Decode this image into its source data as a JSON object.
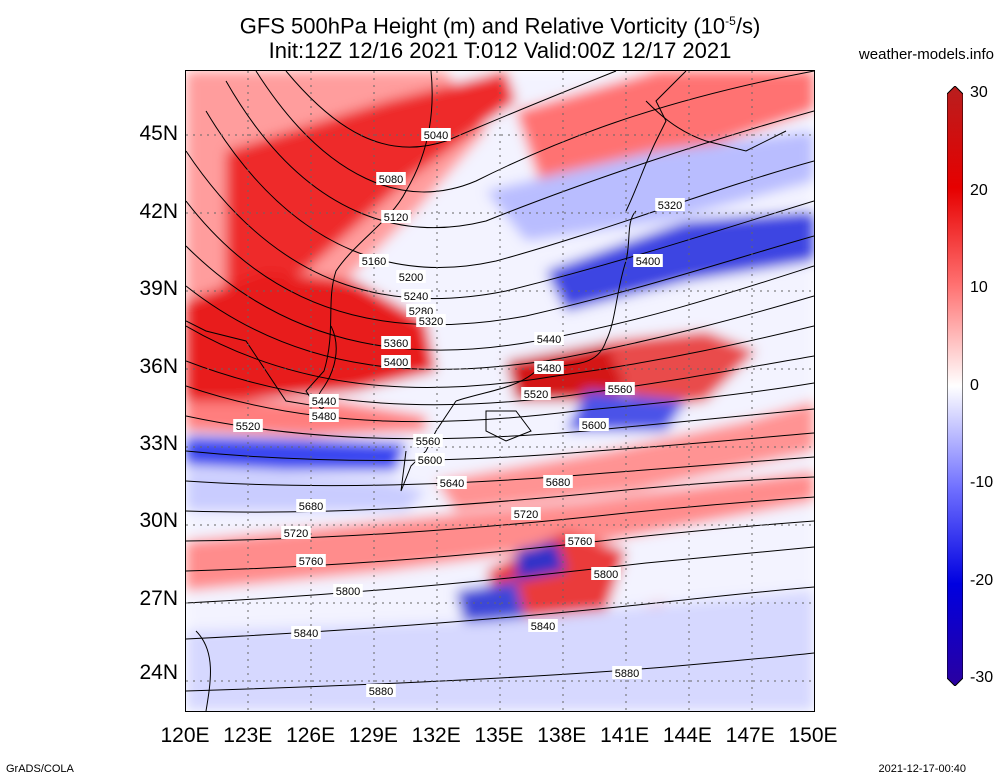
{
  "title_line1": "GFS 500hPa Height (m) and Relative Vorticity (10",
  "title_sup": "-5",
  "title_end": "/s)",
  "title_line2": "Init:12Z 12/16 2021 T:012 Valid:00Z 12/17 2021",
  "website": "weather-models.info",
  "lat_labels": [
    "45N",
    "42N",
    "39N",
    "36N",
    "33N",
    "30N",
    "27N",
    "24N"
  ],
  "lon_labels": [
    "120E",
    "123E",
    "126E",
    "129E",
    "132E",
    "135E",
    "138E",
    "141E",
    "144E",
    "147E",
    "150E"
  ],
  "colorbar": {
    "labels": [
      "30",
      "20",
      "10",
      "0",
      "-10",
      "-20",
      "-30"
    ],
    "colors": [
      "#b81e1e",
      "#e60000",
      "#ff7070",
      "#ffffff",
      "#7070ff",
      "#0000e0",
      "#2a00a0"
    ]
  },
  "contour_labels": [
    "5040",
    "5080",
    "5120",
    "5160",
    "5200",
    "5240",
    "5280",
    "5320",
    "5360",
    "5400",
    "5440",
    "5480",
    "5520",
    "5560",
    "5600",
    "5640",
    "5680",
    "5720",
    "5760",
    "5800",
    "5840",
    "5880",
    "5320",
    "5400",
    "5440",
    "5480",
    "5520",
    "5560",
    "5600",
    "5680",
    "5720",
    "5760",
    "5800",
    "5840",
    "5880"
  ],
  "footer_left": "GrADS/COLA",
  "footer_right": "2021-12-17-00:40"
}
